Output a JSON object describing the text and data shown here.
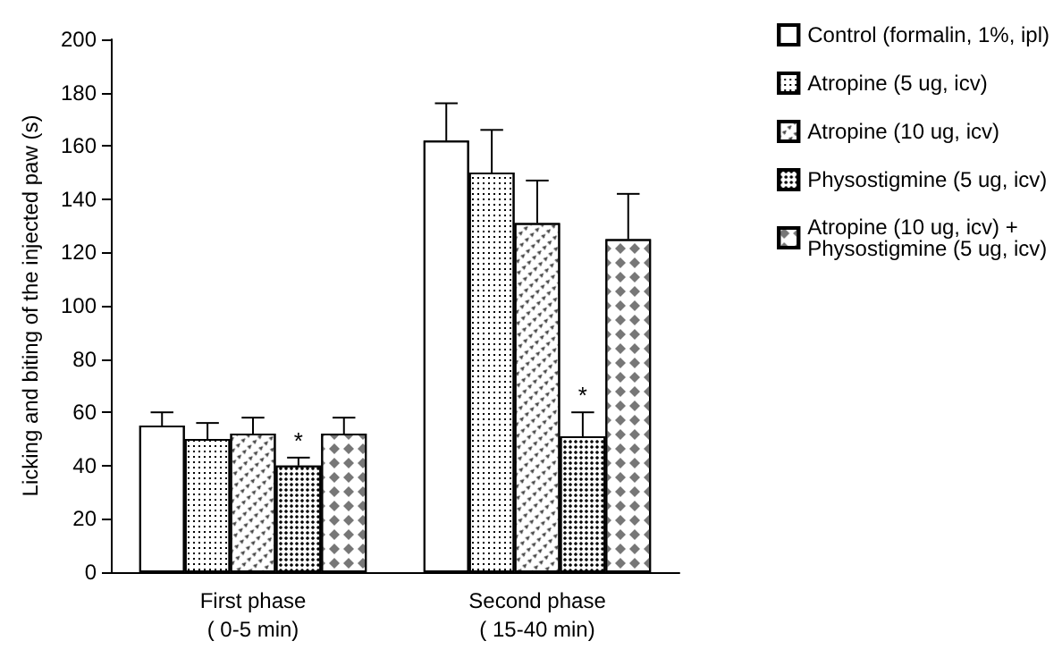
{
  "chart_data": {
    "type": "bar",
    "ylabel": "Licking and biting of the injected paw (s)",
    "categories": [
      "First phase\n( 0-5 min)",
      "Second phase\n( 15-40 min)"
    ],
    "series": [
      {
        "name": "Control (formalin, 1%, ipl)",
        "color": "#ffffff",
        "values": [
          55,
          162
        ],
        "errors": [
          [
            55,
            60
          ],
          [
            162,
            176
          ]
        ]
      },
      {
        "name": "Atropine (5 ug, icv)",
        "color": "#ffffff",
        "values": [
          50,
          150
        ],
        "errors": [
          [
            50,
            56
          ],
          [
            150,
            166
          ]
        ]
      },
      {
        "name": "Atropine (10 ug, icv)",
        "color": "#ffffff",
        "values": [
          52,
          131
        ],
        "errors": [
          [
            52,
            58
          ],
          [
            131,
            147
          ]
        ]
      },
      {
        "name": "Physostigmine (5 ug, icv)",
        "color": "#ffffff",
        "values": [
          40,
          51
        ],
        "errors": [
          [
            40,
            43
          ],
          [
            51,
            60
          ]
        ]
      },
      {
        "name": "Atropine (10 ug, icv) + Physostigmine (5 ug, icv)",
        "color": "#ffffff",
        "values": [
          52,
          125
        ],
        "errors": [
          [
            52,
            58
          ],
          [
            125,
            142
          ]
        ]
      }
    ],
    "annotations": [
      "*",
      "*"
    ],
    "ylim": [
      0,
      200
    ],
    "yticks": [
      0,
      20,
      40,
      60,
      80,
      100,
      120,
      140,
      160,
      180,
      200
    ],
    "grid": false,
    "legend": "right"
  }
}
